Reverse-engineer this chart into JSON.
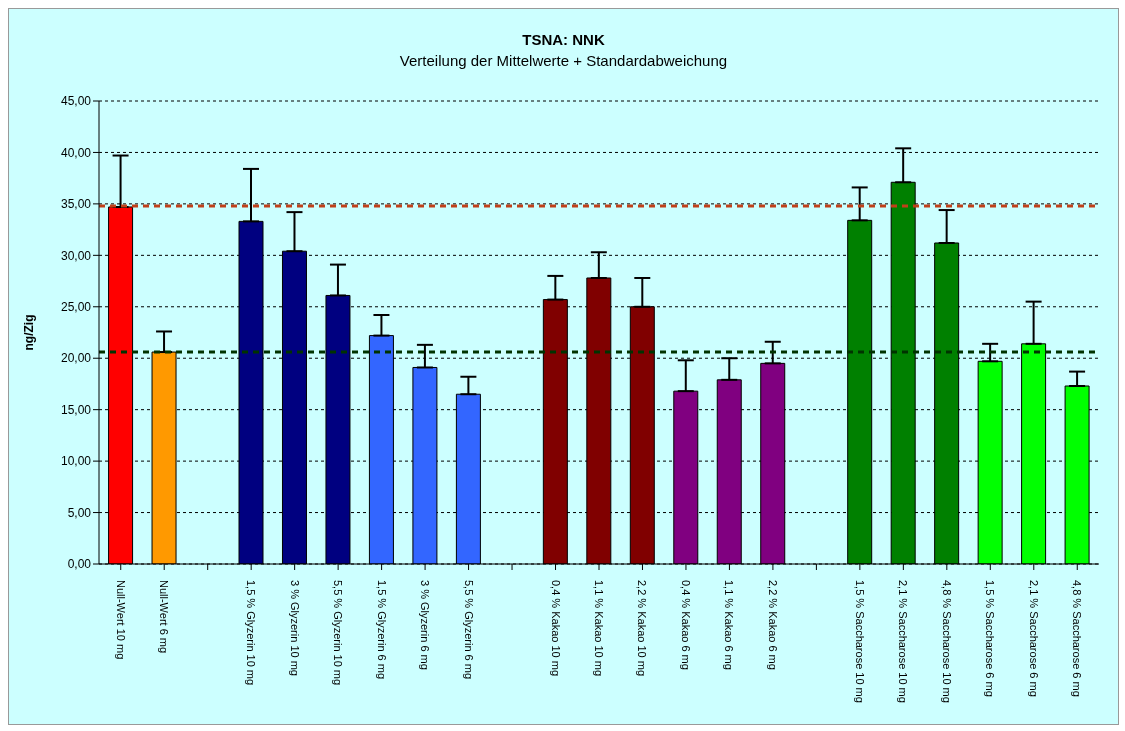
{
  "chart_data": {
    "type": "bar",
    "title": "TSNA: NNK",
    "subtitle": "Verteilung der Mittelwerte + Standardabweichung",
    "ylabel": "ng/Zig",
    "categories": [
      "Null-Wert 10 mg",
      "Null-Wert 6 mg",
      null,
      "1,5 % Glyzerin 10 mg",
      "3 % Glyzerin 10 mg",
      "5,5 % Glyzerin 10 mg",
      "1,5 % Glyzerin 6 mg",
      "3 % Glyzerin 6 mg",
      "5,5 % Glyzerin 6 mg",
      null,
      "0,4 % Kakao 10 mg",
      "1,1 % Kakao 10 mg",
      "2,2 % Kakao 10 mg",
      "0,4 % Kakao 6 mg",
      "1,1 % Kakao 6 mg",
      "2,2 % Kakao 6 mg",
      null,
      "1,5 % Saccharose 10 mg",
      "2,1 % Saccharose 10 mg",
      "4,8 % Saccharose 10 mg",
      "1,5 % Saccharose 6 mg",
      "2,1 % Saccharose 6 mg",
      "4,8 % Saccharose 6 mg"
    ],
    "values": [
      34.7,
      20.6,
      null,
      33.3,
      30.4,
      26.1,
      22.2,
      19.1,
      16.5,
      null,
      25.7,
      27.8,
      25.0,
      16.8,
      17.9,
      19.5,
      null,
      33.4,
      37.1,
      31.2,
      19.7,
      21.4,
      17.3
    ],
    "errors": [
      [
        34.7,
        39.7
      ],
      [
        20.6,
        22.6
      ],
      null,
      [
        33.3,
        38.4
      ],
      [
        30.4,
        34.2
      ],
      [
        26.1,
        29.1
      ],
      [
        22.2,
        24.2
      ],
      [
        19.1,
        21.3
      ],
      [
        16.5,
        18.2
      ],
      null,
      [
        25.7,
        28.0
      ],
      [
        27.8,
        30.3
      ],
      [
        25.0,
        27.8
      ],
      [
        16.8,
        19.8
      ],
      [
        17.9,
        20.0
      ],
      [
        19.5,
        21.6
      ],
      null,
      [
        33.4,
        36.6
      ],
      [
        37.1,
        40.4
      ],
      [
        31.2,
        34.4
      ],
      [
        19.7,
        21.4
      ],
      [
        21.4,
        25.5
      ],
      [
        17.3,
        18.7
      ]
    ],
    "colors": [
      "#ff0000",
      "#ff9900",
      null,
      "#000080",
      "#000080",
      "#000080",
      "#3366ff",
      "#3366ff",
      "#3366ff",
      null,
      "#800000",
      "#800000",
      "#800000",
      "#800080",
      "#800080",
      "#800080",
      null,
      "#008000",
      "#008000",
      "#008000",
      "#00ff00",
      "#00ff00",
      "#00ff00"
    ],
    "ylim": [
      0,
      45
    ],
    "yticks": [
      {
        "value": 0,
        "label": "0,00"
      },
      {
        "value": 5,
        "label": "5,00"
      },
      {
        "value": 10,
        "label": "10,00"
      },
      {
        "value": 15,
        "label": "15,00"
      },
      {
        "value": 20,
        "label": "20,00"
      },
      {
        "value": 25,
        "label": "25,00"
      },
      {
        "value": 30,
        "label": "30,00"
      },
      {
        "value": 35,
        "label": "35,00"
      },
      {
        "value": 40,
        "label": "40,00"
      },
      {
        "value": 45,
        "label": "45,00"
      }
    ],
    "ref_lines": [
      {
        "axis": "y",
        "value": 34.8,
        "color": "#c0401a",
        "line_style": "dashed"
      },
      {
        "axis": "y",
        "value": 20.6,
        "color": "#003300",
        "line_style": "dashed"
      }
    ],
    "grid": "y",
    "legend": false
  }
}
